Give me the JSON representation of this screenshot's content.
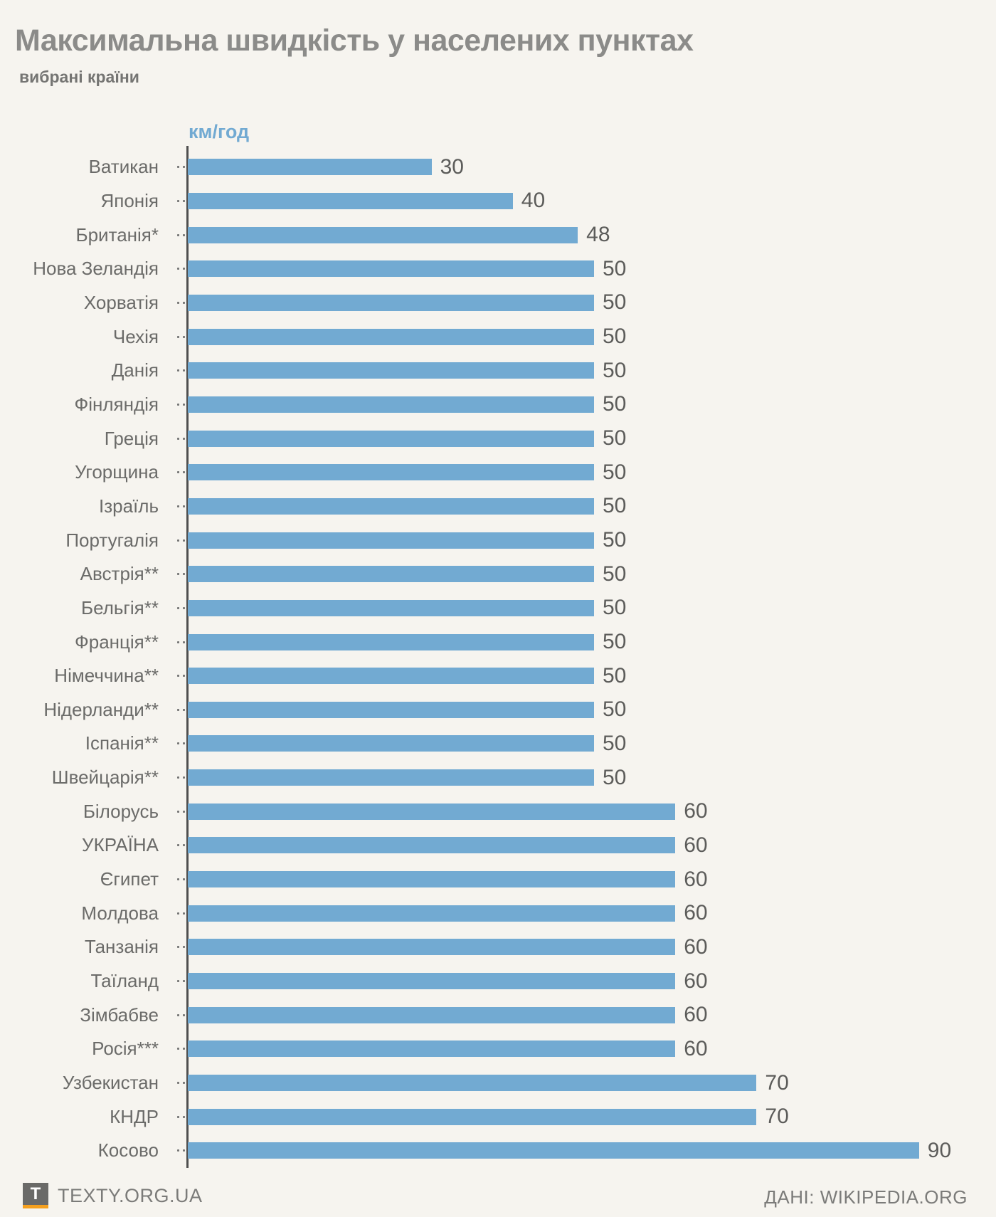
{
  "title": "Максимальна швидкість у населених пунктах",
  "subtitle": "вибрані країни",
  "footer": {
    "logo_letter": "T",
    "brand": "TEXTY.ORG.UA",
    "source": "ДАНІ: WIKIPEDIA.ORG"
  },
  "colors": {
    "background": "#f6f4ef",
    "bar": "#72aad2",
    "axis": "#4f4f4f",
    "title_gray": "#8b8b89",
    "label_gray": "#6b6b69",
    "logo_gray": "#6a6a68",
    "logo_orange": "#f5a01e"
  },
  "chart_data": {
    "type": "bar",
    "orientation": "horizontal",
    "title": "Максимальна швидкість у населених пунктах",
    "subtitle": "вибрані країни",
    "unit_label": "км/год",
    "value_labels": "end-of-bar",
    "grid": false,
    "xlim": [
      0,
      100
    ],
    "categories": [
      "Ватикан",
      "Японія",
      "Британія*",
      "Нова Зеландія",
      "Хорватія",
      "Чехія",
      "Данія",
      "Фінляндія",
      "Греція",
      "Угорщина",
      "Ізраїль",
      "Португалія",
      "Австрія**",
      "Бельгія**",
      "Франція**",
      "Німеччина**",
      "Нідерланди**",
      "Іспанія**",
      "Швейцарія**",
      "Білорусь",
      "УКРАЇНА",
      "Єгипет",
      "Молдова",
      "Танзанія",
      "Таїланд",
      "Зімбабве",
      "Росія***",
      "Узбекистан",
      "КНДР",
      "Косово"
    ],
    "values": [
      30,
      40,
      48,
      50,
      50,
      50,
      50,
      50,
      50,
      50,
      50,
      50,
      50,
      50,
      50,
      50,
      50,
      50,
      50,
      60,
      60,
      60,
      60,
      60,
      60,
      60,
      60,
      70,
      70,
      90
    ]
  }
}
